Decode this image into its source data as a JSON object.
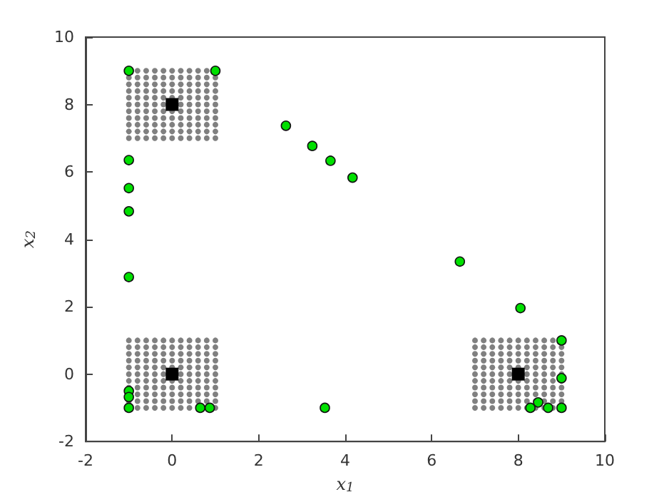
{
  "chart_data": {
    "type": "scatter",
    "xlabel": "x$_{1}$",
    "ylabel": "x$_{2}$",
    "xlim": [
      -2,
      10
    ],
    "ylim": [
      -2,
      10
    ],
    "xticks": [
      -2,
      0,
      2,
      4,
      6,
      8,
      10
    ],
    "yticks": [
      -2,
      0,
      2,
      4,
      6,
      8,
      10
    ],
    "grid": false,
    "marker": "circle",
    "series": [
      {
        "color": "#808080",
        "x": [
          -1,
          -0.8,
          -0.6,
          -0.4,
          -0.2,
          0,
          0.2,
          0.4,
          0.6,
          0.8,
          1,
          -1,
          -0.8,
          -0.6,
          -0.4,
          -0.2,
          0,
          0.2,
          0.4,
          0.6,
          0.8,
          1,
          -1,
          -0.8,
          -0.6,
          -0.4,
          -0.2,
          0,
          0.2,
          0.4,
          0.6,
          0.8,
          1,
          -1,
          -0.8,
          -0.6,
          -0.4,
          -0.2,
          0,
          0.2,
          0.4,
          0.6,
          0.8,
          1,
          -1,
          -0.8,
          -0.6,
          -0.4,
          -0.2,
          0,
          0.2,
          0.4,
          0.6,
          0.8,
          1,
          -1,
          -0.8,
          -0.6,
          -0.4,
          -0.2,
          0.2,
          0.4,
          0.6,
          0.8,
          1,
          -1,
          -0.8,
          -0.6,
          -0.4,
          -0.2,
          0,
          0.2,
          0.4,
          0.6,
          0.8,
          1,
          -1,
          -0.8,
          -0.6,
          -0.4,
          -0.2,
          0,
          0.2,
          0.4,
          0.6,
          0.8,
          1,
          -1,
          -0.8,
          -0.6,
          -0.4,
          -0.2,
          0,
          0.2,
          0.4,
          0.6,
          0.8,
          1,
          -1,
          -0.8,
          -0.6,
          -0.4,
          -0.2,
          0,
          0.2,
          0.4,
          0.6,
          0.8,
          1,
          -0.8,
          -0.6,
          -0.4,
          -0.2,
          0,
          0.2,
          0.4,
          0.6,
          0.8
        ],
        "values": [
          7,
          7,
          7,
          7,
          7,
          7,
          7,
          7,
          7,
          7,
          7,
          7.2,
          7.2,
          7.2,
          7.2,
          7.2,
          7.2,
          7.2,
          7.2,
          7.2,
          7.2,
          7.2,
          7.4,
          7.4,
          7.4,
          7.4,
          7.4,
          7.4,
          7.4,
          7.4,
          7.4,
          7.4,
          7.4,
          7.6,
          7.6,
          7.6,
          7.6,
          7.6,
          7.6,
          7.6,
          7.6,
          7.6,
          7.6,
          7.6,
          7.8,
          7.8,
          7.8,
          7.8,
          7.8,
          7.8,
          7.8,
          7.8,
          7.8,
          7.8,
          7.8,
          8,
          8,
          8,
          8,
          8,
          8,
          8,
          8,
          8,
          8,
          8.2,
          8.2,
          8.2,
          8.2,
          8.2,
          8.2,
          8.2,
          8.2,
          8.2,
          8.2,
          8.2,
          8.4,
          8.4,
          8.4,
          8.4,
          8.4,
          8.4,
          8.4,
          8.4,
          8.4,
          8.4,
          8.4,
          8.6,
          8.6,
          8.6,
          8.6,
          8.6,
          8.6,
          8.6,
          8.6,
          8.6,
          8.6,
          8.6,
          8.8,
          8.8,
          8.8,
          8.8,
          8.8,
          8.8,
          8.8,
          8.8,
          8.8,
          8.8,
          8.8,
          9,
          9,
          9,
          9,
          9,
          9,
          9,
          9,
          9
        ]
      },
      {
        "color": "#808080",
        "x": [
          -0.8,
          -0.6,
          -0.4,
          -0.2,
          0,
          0.2,
          0.4,
          0.8,
          1,
          -1,
          -0.8,
          -0.6,
          -0.4,
          -0.2,
          0,
          0.2,
          0.4,
          0.6,
          0.8,
          1,
          -0.8,
          -0.6,
          -0.4,
          -0.2,
          0,
          0.2,
          0.4,
          0.6,
          0.8,
          1,
          -1,
          -0.8,
          -0.6,
          -0.4,
          -0.2,
          0,
          0.2,
          0.4,
          0.6,
          0.8,
          1,
          -1,
          -0.8,
          -0.6,
          -0.4,
          -0.2,
          0,
          0.2,
          0.4,
          0.6,
          0.8,
          1,
          -1,
          -0.8,
          -0.6,
          -0.4,
          -0.2,
          0.2,
          0.4,
          0.6,
          0.8,
          1,
          -1,
          -0.8,
          -0.6,
          -0.4,
          -0.2,
          0,
          0.2,
          0.4,
          0.6,
          0.8,
          1,
          -1,
          -0.8,
          -0.6,
          -0.4,
          -0.2,
          0,
          0.2,
          0.4,
          0.6,
          0.8,
          1,
          -1,
          -0.8,
          -0.6,
          -0.4,
          -0.2,
          0,
          0.2,
          0.4,
          0.6,
          0.8,
          1,
          -1,
          -0.8,
          -0.6,
          -0.4,
          -0.2,
          0,
          0.2,
          0.4,
          0.6,
          0.8,
          1,
          -1,
          -0.8,
          -0.6,
          -0.4,
          -0.2,
          0,
          0.2,
          0.4,
          0.6,
          0.8,
          1
        ],
        "values": [
          -1,
          -1,
          -1,
          -1,
          -1,
          -1,
          -1,
          -1,
          -1,
          -0.8,
          -0.8,
          -0.8,
          -0.8,
          -0.8,
          -0.8,
          -0.8,
          -0.8,
          -0.8,
          -0.8,
          -0.8,
          -0.6,
          -0.6,
          -0.6,
          -0.6,
          -0.6,
          -0.6,
          -0.6,
          -0.6,
          -0.6,
          -0.6,
          -0.4,
          -0.4,
          -0.4,
          -0.4,
          -0.4,
          -0.4,
          -0.4,
          -0.4,
          -0.4,
          -0.4,
          -0.4,
          -0.2,
          -0.2,
          -0.2,
          -0.2,
          -0.2,
          -0.2,
          -0.2,
          -0.2,
          -0.2,
          -0.2,
          -0.2,
          0,
          0,
          0,
          0,
          0,
          0,
          0,
          0,
          0,
          0,
          0.2,
          0.2,
          0.2,
          0.2,
          0.2,
          0.2,
          0.2,
          0.2,
          0.2,
          0.2,
          0.2,
          0.4,
          0.4,
          0.4,
          0.4,
          0.4,
          0.4,
          0.4,
          0.4,
          0.4,
          0.4,
          0.4,
          0.6,
          0.6,
          0.6,
          0.6,
          0.6,
          0.6,
          0.6,
          0.6,
          0.6,
          0.6,
          0.6,
          0.8,
          0.8,
          0.8,
          0.8,
          0.8,
          0.8,
          0.8,
          0.8,
          0.8,
          0.8,
          0.8,
          1,
          1,
          1,
          1,
          1,
          1,
          1,
          1,
          1,
          1,
          1
        ]
      },
      {
        "color": "#808080",
        "x": [
          7,
          7.2,
          7.4,
          7.6,
          7.8,
          8,
          8.2,
          8.4,
          8.6,
          8.8,
          7,
          7.2,
          7.4,
          7.6,
          7.8,
          8,
          8.2,
          8.4,
          8.6,
          8.8,
          9,
          7,
          7.2,
          7.4,
          7.6,
          7.8,
          8,
          8.2,
          8.4,
          8.6,
          8.8,
          9,
          7,
          7.2,
          7.4,
          7.6,
          7.8,
          8,
          8.2,
          8.4,
          8.6,
          8.8,
          9,
          7,
          7.2,
          7.4,
          7.6,
          7.8,
          8,
          8.2,
          8.4,
          8.6,
          8.8,
          9,
          7,
          7.2,
          7.4,
          7.6,
          7.8,
          8.2,
          8.4,
          8.6,
          8.8,
          9,
          7,
          7.2,
          7.4,
          7.6,
          7.8,
          8,
          8.2,
          8.4,
          8.6,
          8.8,
          9,
          7,
          7.2,
          7.4,
          7.6,
          7.8,
          8,
          8.2,
          8.4,
          8.6,
          8.8,
          9,
          7,
          7.2,
          7.4,
          7.6,
          7.8,
          8,
          8.2,
          8.4,
          8.6,
          8.8,
          9,
          7,
          7.2,
          7.4,
          7.6,
          7.8,
          8,
          8.2,
          8.4,
          8.6,
          8.8,
          9,
          7,
          7.2,
          7.4,
          7.6,
          7.8,
          8,
          8.2,
          8.4,
          8.6,
          8.8
        ],
        "values": [
          -1,
          -1,
          -1,
          -1,
          -1,
          -1,
          -1,
          -1,
          -1,
          -1,
          -0.8,
          -0.8,
          -0.8,
          -0.8,
          -0.8,
          -0.8,
          -0.8,
          -0.8,
          -0.8,
          -0.8,
          -0.8,
          -0.6,
          -0.6,
          -0.6,
          -0.6,
          -0.6,
          -0.6,
          -0.6,
          -0.6,
          -0.6,
          -0.6,
          -0.6,
          -0.4,
          -0.4,
          -0.4,
          -0.4,
          -0.4,
          -0.4,
          -0.4,
          -0.4,
          -0.4,
          -0.4,
          -0.4,
          -0.2,
          -0.2,
          -0.2,
          -0.2,
          -0.2,
          -0.2,
          -0.2,
          -0.2,
          -0.2,
          -0.2,
          -0.2,
          0,
          0,
          0,
          0,
          0,
          0,
          0,
          0,
          0,
          0,
          0.2,
          0.2,
          0.2,
          0.2,
          0.2,
          0.2,
          0.2,
          0.2,
          0.2,
          0.2,
          0.2,
          0.4,
          0.4,
          0.4,
          0.4,
          0.4,
          0.4,
          0.4,
          0.4,
          0.4,
          0.4,
          0.4,
          0.6,
          0.6,
          0.6,
          0.6,
          0.6,
          0.6,
          0.6,
          0.6,
          0.6,
          0.6,
          0.6,
          0.8,
          0.8,
          0.8,
          0.8,
          0.8,
          0.8,
          0.8,
          0.8,
          0.8,
          0.8,
          0.8,
          1,
          1,
          1,
          1,
          1,
          1,
          1,
          1,
          1,
          1
        ]
      },
      {
        "color": "#000000",
        "marker": "square",
        "x": [
          0,
          0,
          8
        ],
        "values": [
          8,
          0,
          0
        ]
      },
      {
        "color": "#00e000",
        "x": [
          -1,
          1,
          -1,
          -1,
          -1,
          -1,
          2.63,
          3.24,
          3.66,
          4.17,
          6.65,
          8.05,
          9,
          9,
          8.46,
          8.28,
          8.69,
          9,
          3.53,
          -1,
          -1,
          -1,
          0.65,
          0.87
        ],
        "values": [
          9,
          9,
          6.35,
          5.52,
          4.83,
          2.88,
          7.37,
          6.77,
          6.33,
          5.83,
          3.34,
          1.96,
          1,
          -0.12,
          -0.84,
          -1,
          -1,
          -1,
          -1,
          -0.5,
          -0.68,
          -1,
          -1,
          -1
        ]
      }
    ]
  }
}
